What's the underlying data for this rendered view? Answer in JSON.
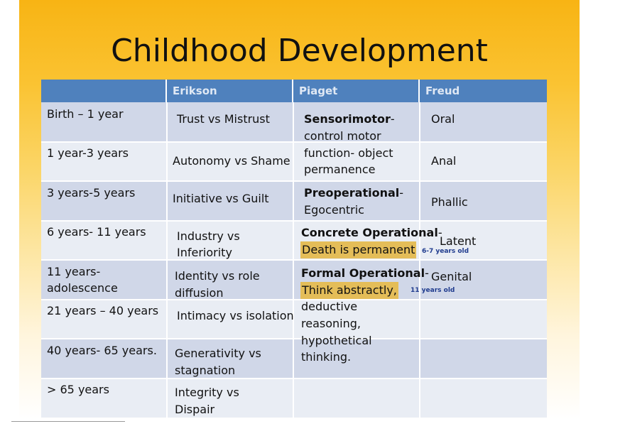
{
  "title": "Childhood Development",
  "headers": [
    "",
    "Erikson",
    "Piaget",
    "Freud"
  ],
  "ages": [
    "Birth – 1 year",
    "1 year-3 years",
    "3 years-5 years",
    "6 years- 11 years",
    "11 years-",
    "adolescence",
    "21 years – 40 years",
    "40 years- 65 years.",
    "> 65 years"
  ],
  "erikson": [
    "Trust vs Mistrust",
    "Autonomy vs Shame",
    "Initiative vs Guilt",
    "Industry vs",
    "Inferiority",
    "Identity vs role",
    "diffusion",
    "Intimacy vs isolation",
    "Generativity vs",
    "stagnation",
    "Integrity vs",
    "Dispair"
  ],
  "piaget": {
    "sensorimotor_bold": "Sensorimotor",
    "sensorimotor_rest": [
      "-",
      "control motor",
      "function- object",
      "permanence"
    ],
    "preop_bold": "Preoperational",
    "preop_rest": [
      "-",
      "Egocentric"
    ],
    "concrete_bold": "Concrete Operational",
    "concrete_dash": "-",
    "concrete_hl": "Death is permanent",
    "concrete_note": "6-7 years old",
    "formal_bold": "Formal Operational",
    "formal_dash": "-",
    "formal_hl": "Think abstractly,",
    "formal_note": "11 years old",
    "formal_rest": [
      "deductive",
      "reasoning,",
      "hypothetical",
      "thinking."
    ]
  },
  "freud": [
    "Oral",
    "Anal",
    "Phallic",
    "Latent",
    "Genital"
  ]
}
